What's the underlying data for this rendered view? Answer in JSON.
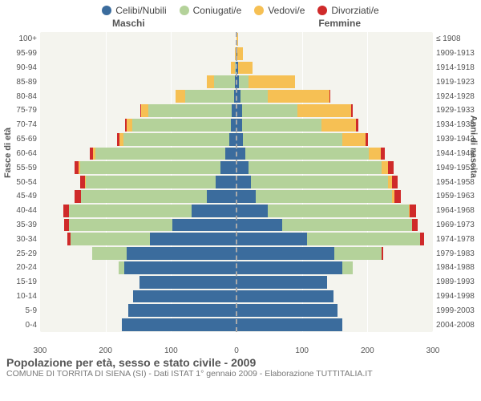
{
  "legend": [
    {
      "label": "Celibi/Nubili",
      "color": "#3b6c9d"
    },
    {
      "label": "Coniugati/e",
      "color": "#b4d29a"
    },
    {
      "label": "Vedovi/e",
      "color": "#f6c054"
    },
    {
      "label": "Divorziati/e",
      "color": "#cf2a2a"
    }
  ],
  "header": {
    "left": "Maschi",
    "right": "Femmine"
  },
  "yaxis_left_title": "Fasce di età",
  "yaxis_right_title": "Anni di nascita",
  "xaxis_max": 300,
  "xaxis_ticks": [
    300,
    200,
    100,
    0,
    100,
    200,
    300
  ],
  "background_color": "#f4f4ee",
  "grid_color": "#ffffff",
  "rows": [
    {
      "age": "100+",
      "birth": "≤ 1908",
      "m": [
        0,
        0,
        0,
        0
      ],
      "f": [
        0,
        0,
        2,
        0
      ]
    },
    {
      "age": "95-99",
      "birth": "1909-1913",
      "m": [
        0,
        0,
        3,
        0
      ],
      "f": [
        1,
        0,
        9,
        0
      ]
    },
    {
      "age": "90-94",
      "birth": "1914-1918",
      "m": [
        1,
        1,
        7,
        0
      ],
      "f": [
        2,
        1,
        22,
        0
      ]
    },
    {
      "age": "85-89",
      "birth": "1919-1923",
      "m": [
        2,
        32,
        11,
        0
      ],
      "f": [
        4,
        14,
        72,
        0
      ]
    },
    {
      "age": "80-84",
      "birth": "1924-1928",
      "m": [
        4,
        75,
        14,
        0
      ],
      "f": [
        6,
        42,
        94,
        1
      ]
    },
    {
      "age": "75-79",
      "birth": "1929-1933",
      "m": [
        7,
        128,
        11,
        1
      ],
      "f": [
        8,
        85,
        82,
        2
      ]
    },
    {
      "age": "70-74",
      "birth": "1934-1938",
      "m": [
        9,
        150,
        9,
        2
      ],
      "f": [
        8,
        122,
        53,
        3
      ]
    },
    {
      "age": "65-69",
      "birth": "1939-1943",
      "m": [
        11,
        162,
        6,
        3
      ],
      "f": [
        10,
        152,
        35,
        4
      ]
    },
    {
      "age": "60-64",
      "birth": "1944-1948",
      "m": [
        17,
        198,
        4,
        5
      ],
      "f": [
        14,
        188,
        18,
        6
      ]
    },
    {
      "age": "55-59",
      "birth": "1949-1953",
      "m": [
        24,
        215,
        2,
        7
      ],
      "f": [
        18,
        204,
        10,
        8
      ]
    },
    {
      "age": "50-54",
      "birth": "1954-1958",
      "m": [
        32,
        198,
        1,
        8
      ],
      "f": [
        22,
        209,
        6,
        9
      ]
    },
    {
      "age": "45-49",
      "birth": "1959-1963",
      "m": [
        45,
        192,
        1,
        9
      ],
      "f": [
        30,
        208,
        3,
        10
      ]
    },
    {
      "age": "40-44",
      "birth": "1964-1968",
      "m": [
        68,
        188,
        0,
        9
      ],
      "f": [
        48,
        215,
        1,
        10
      ]
    },
    {
      "age": "35-39",
      "birth": "1969-1973",
      "m": [
        98,
        158,
        0,
        7
      ],
      "f": [
        70,
        198,
        0,
        9
      ]
    },
    {
      "age": "30-34",
      "birth": "1974-1978",
      "m": [
        132,
        122,
        0,
        4
      ],
      "f": [
        108,
        172,
        0,
        6
      ]
    },
    {
      "age": "25-29",
      "birth": "1979-1983",
      "m": [
        168,
        52,
        0,
        1
      ],
      "f": [
        150,
        72,
        0,
        2
      ]
    },
    {
      "age": "20-24",
      "birth": "1984-1988",
      "m": [
        172,
        8,
        0,
        0
      ],
      "f": [
        162,
        15,
        0,
        0
      ]
    },
    {
      "age": "15-19",
      "birth": "1989-1993",
      "m": [
        148,
        0,
        0,
        0
      ],
      "f": [
        138,
        0,
        0,
        0
      ]
    },
    {
      "age": "10-14",
      "birth": "1994-1998",
      "m": [
        158,
        0,
        0,
        0
      ],
      "f": [
        148,
        0,
        0,
        0
      ]
    },
    {
      "age": "5-9",
      "birth": "1999-2003",
      "m": [
        165,
        0,
        0,
        0
      ],
      "f": [
        154,
        0,
        0,
        0
      ]
    },
    {
      "age": "0-4",
      "birth": "2004-2008",
      "m": [
        175,
        0,
        0,
        0
      ],
      "f": [
        162,
        0,
        0,
        0
      ]
    }
  ],
  "footer": {
    "title": "Popolazione per età, sesso e stato civile - 2009",
    "subtitle": "COMUNE DI TORRITA DI SIENA (SI) - Dati ISTAT 1° gennaio 2009 - Elaborazione TUTTITALIA.IT"
  }
}
